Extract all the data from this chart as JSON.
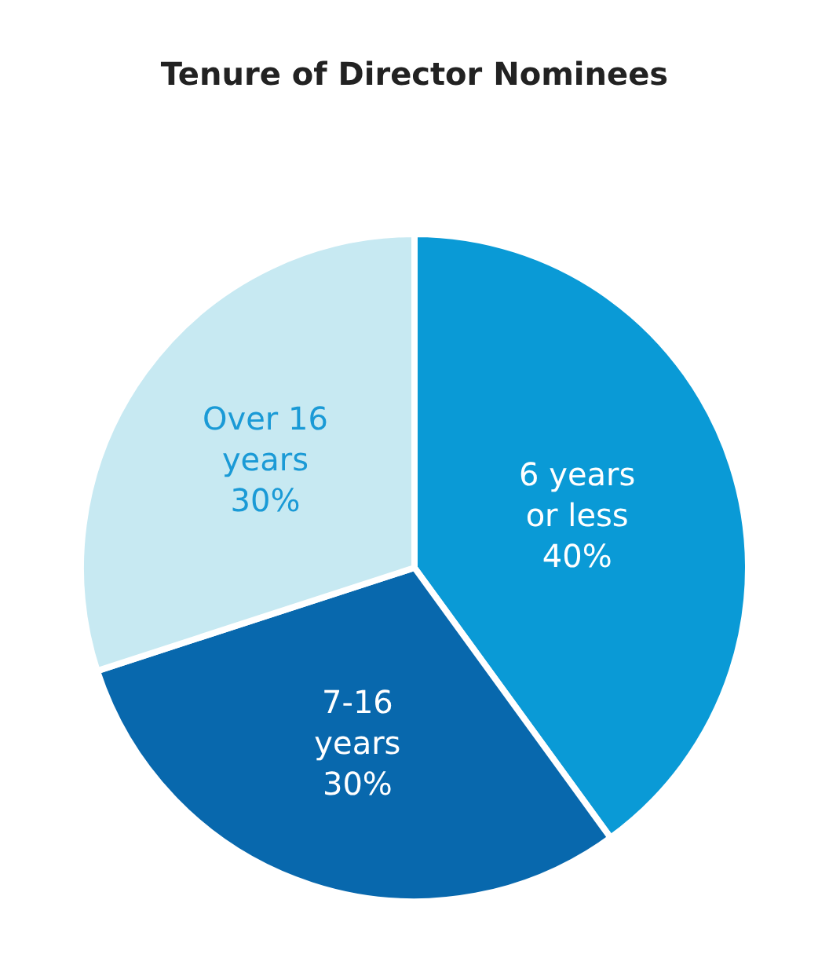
{
  "chart_data": {
    "type": "pie",
    "title": "Tenure of Director Nominees",
    "categories": [
      "6 years or less",
      "7-16 years",
      "Over 16 years"
    ],
    "values": [
      40,
      30,
      30
    ],
    "value_labels": [
      "40%",
      "30%",
      "30%"
    ],
    "colors": [
      "#0a9ad6",
      "#0868ad",
      "#c7e9f2"
    ],
    "legend": false
  }
}
